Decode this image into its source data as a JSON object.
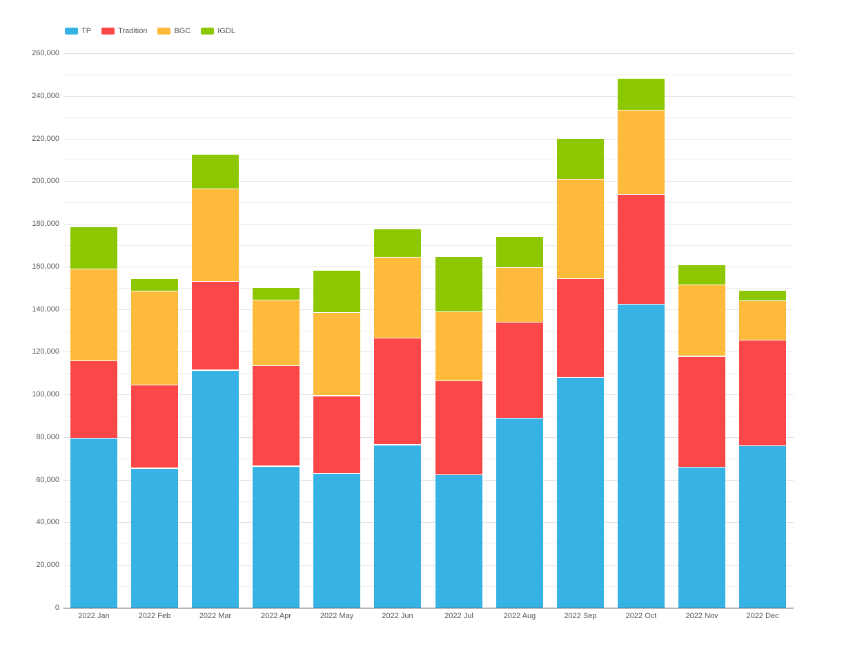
{
  "chart_data": {
    "type": "bar",
    "stacked": true,
    "title": "",
    "xlabel": "",
    "ylabel": "",
    "categories": [
      "2022 Jan",
      "2022 Feb",
      "2022 Mar",
      "2022 Apr",
      "2022 May",
      "2022 Jun",
      "2022 Jul",
      "2022 Aug",
      "2022 Sep",
      "2022 Oct",
      "2022 Nov",
      "2022 Dec"
    ],
    "series": [
      {
        "name": "TP",
        "color": "#36B3E4",
        "values": [
          79500,
          65500,
          111500,
          66500,
          63000,
          76500,
          62500,
          89000,
          108000,
          142500,
          66000,
          76000
        ]
      },
      {
        "name": "Tradition",
        "color": "#FB4747",
        "values": [
          36500,
          39000,
          41500,
          47000,
          36500,
          50000,
          44000,
          45000,
          46500,
          51500,
          52000,
          49500
        ]
      },
      {
        "name": "BGC",
        "color": "#FDBA3B",
        "values": [
          43000,
          44000,
          43500,
          31000,
          39000,
          38000,
          32500,
          25500,
          46500,
          39500,
          33500,
          18500
        ]
      },
      {
        "name": "IGDL",
        "color": "#8DC702",
        "values": [
          19500,
          5500,
          16000,
          5500,
          19500,
          13000,
          25500,
          14500,
          19000,
          14500,
          9000,
          4500
        ]
      }
    ],
    "ylim": [
      0,
      260000
    ],
    "ytick_interval": 20000,
    "minor_grid_interval": 10000,
    "grid": true,
    "legend_position": "top-left",
    "ytick_labels": [
      "0",
      "20,000",
      "40,000",
      "60,000",
      "80,000",
      "100,000",
      "120,000",
      "140,000",
      "160,000",
      "180,000",
      "200,000",
      "220,000",
      "240,000",
      "260,000"
    ]
  }
}
